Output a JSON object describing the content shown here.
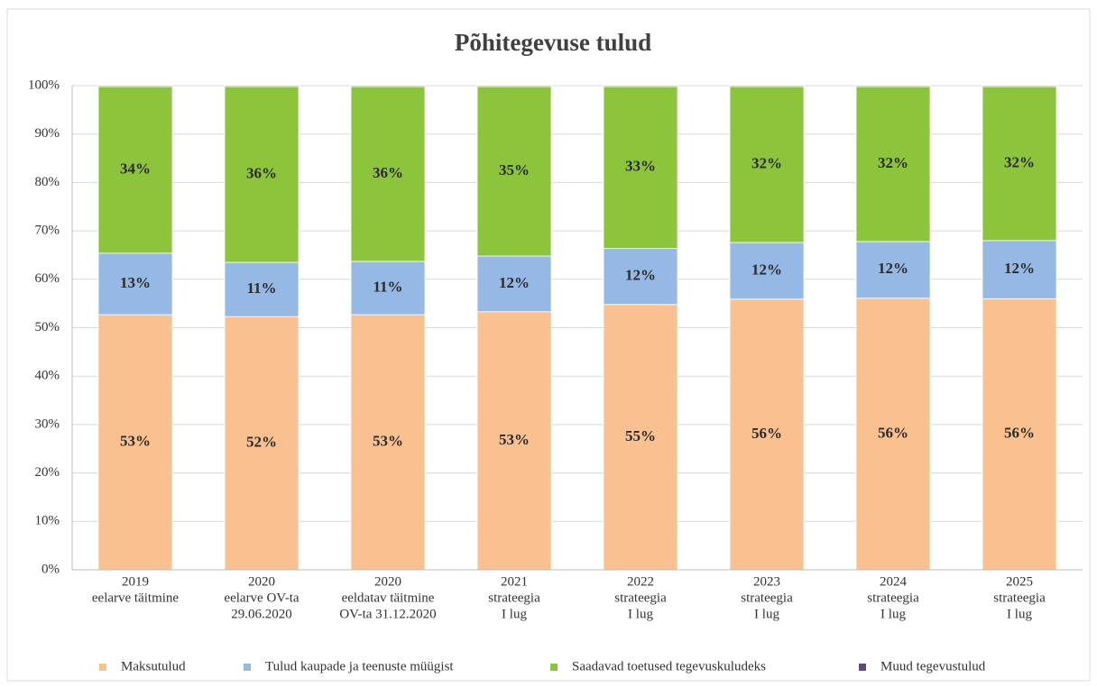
{
  "chart_data": {
    "type": "stacked_bar_percent",
    "title": "Põhitegevuse tulud",
    "categories": [
      [
        "2019",
        "eelarve täitmine"
      ],
      [
        "2020",
        "eelarve OV-ta",
        "29.06.2020"
      ],
      [
        "2020",
        "eeldatav täitmine",
        "OV-ta 31.12.2020"
      ],
      [
        "2021",
        "strateegia",
        "I lug"
      ],
      [
        "2022",
        "strateegia",
        "I lug"
      ],
      [
        "2023",
        "strateegia",
        "I lug"
      ],
      [
        "2024",
        "strateegia",
        "I lug"
      ],
      [
        "2025",
        "strateegia",
        "I lug"
      ]
    ],
    "series": [
      {
        "name": "Maksutulud",
        "color": "#fac090",
        "values": [
          52.7,
          52.3,
          52.7,
          53.3,
          54.8,
          55.9,
          56.1,
          56.0
        ],
        "value_labels": [
          "53%",
          "52%",
          "53%",
          "53%",
          "55%",
          "56%",
          "56%",
          "56%"
        ]
      },
      {
        "name": "Tulud kaupade ja teenuste müügist",
        "color": "#95b9e4",
        "values": [
          12.7,
          11.2,
          11.0,
          11.5,
          11.6,
          11.7,
          11.7,
          12.0
        ],
        "value_labels": [
          "13%",
          "11%",
          "11%",
          "12%",
          "12%",
          "12%",
          "12%",
          "12%"
        ]
      },
      {
        "name": "Saadavad toetused tegevuskuludeks",
        "color": "#8cc43c",
        "values": [
          34.4,
          36.3,
          36.1,
          35.0,
          33.4,
          32.2,
          32.0,
          31.8
        ],
        "value_labels": [
          "34%",
          "36%",
          "36%",
          "35%",
          "33%",
          "32%",
          "32%",
          "32%"
        ]
      },
      {
        "name": "Muud tegevustulud",
        "color": "#604a7b",
        "values": [
          0.2,
          0.2,
          0.2,
          0.2,
          0.2,
          0.2,
          0.2,
          0.2
        ]
      }
    ],
    "ylim": [
      0,
      100
    ],
    "yticks": [
      {
        "value": 0,
        "label": "0%"
      },
      {
        "value": 10,
        "label": "10%"
      },
      {
        "value": 20,
        "label": "20%"
      },
      {
        "value": 30,
        "label": "30%"
      },
      {
        "value": 40,
        "label": "40%"
      },
      {
        "value": 50,
        "label": "50%"
      },
      {
        "value": 60,
        "label": "60%"
      },
      {
        "value": 70,
        "label": "70%"
      },
      {
        "value": 80,
        "label": "80%"
      },
      {
        "value": 90,
        "label": "90%"
      },
      {
        "value": 100,
        "label": "100%"
      }
    ],
    "grid": true,
    "legend": "bottom"
  }
}
